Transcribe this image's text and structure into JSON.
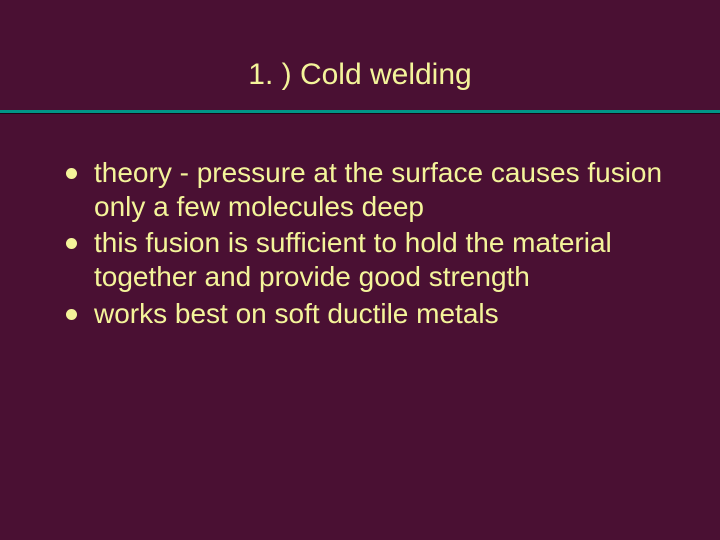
{
  "slide": {
    "title": "1. ) Cold welding",
    "bullets": [
      "theory - pressure at the surface causes fusion only a few molecules deep",
      "this fusion is sufficient to hold the material together and provide good strength",
      "works best on soft ductile metals"
    ],
    "styles": {
      "background_color": "#4a1033",
      "title_color": "#f4f49a",
      "title_fontsize": 30,
      "divider_top_color": "#009688",
      "divider_bottom_color": "#1a0715",
      "bullet_dot_color": "#f4f49a",
      "bullet_text_color": "#f4f49a",
      "bullet_fontsize": 28
    }
  }
}
